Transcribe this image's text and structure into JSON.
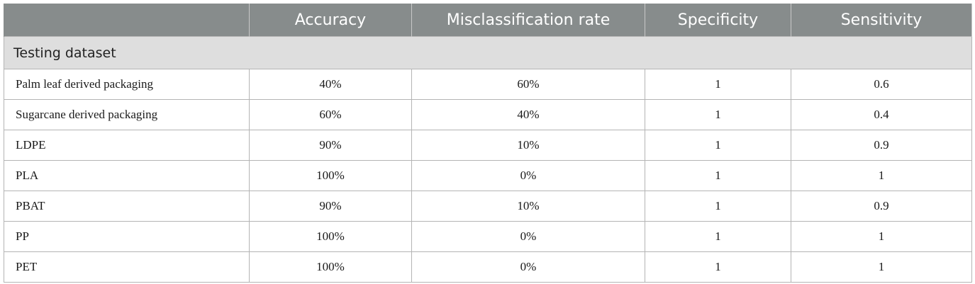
{
  "table": {
    "headers": [
      "",
      "Accuracy",
      "Misclassification rate",
      "Specificity",
      "Sensitivity"
    ],
    "section_label": "Testing dataset",
    "rows": [
      [
        "Palm leaf derived packaging",
        "40%",
        "60%",
        "1",
        "0.6"
      ],
      [
        "Sugarcane derived packaging",
        "60%",
        "40%",
        "1",
        "0.4"
      ],
      [
        "LDPE",
        "90%",
        "10%",
        "1",
        "0.9"
      ],
      [
        "PLA",
        "100%",
        "0%",
        "1",
        "1"
      ],
      [
        "PBAT",
        "90%",
        "10%",
        "1",
        "0.9"
      ],
      [
        "PP",
        "100%",
        "0%",
        "1",
        "1"
      ],
      [
        "PET",
        "100%",
        "0%",
        "1",
        "1"
      ]
    ]
  },
  "colors": {
    "header_bg": "#878c8c",
    "section_bg": "#dedede",
    "border": "#b4b4b4"
  }
}
